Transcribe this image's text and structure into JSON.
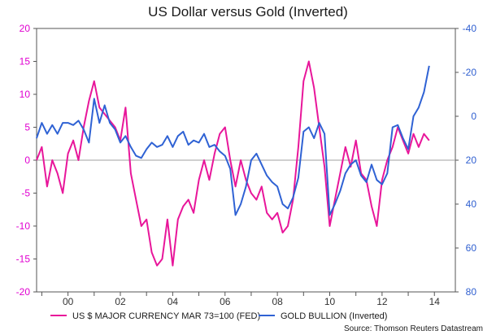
{
  "chart_data": {
    "type": "line",
    "title": "US Dollar versus Gold (Inverted)",
    "x_ticks": [
      "00",
      "02",
      "04",
      "06",
      "08",
      "10",
      "12",
      "14"
    ],
    "x_range": [
      1998.8,
      2014.8
    ],
    "left_axis": {
      "ticks": [
        "20",
        "15",
        "10",
        "5",
        "0",
        "-5",
        "-10",
        "-15",
        "-20"
      ],
      "ylim": [
        -20,
        20
      ],
      "color": "#e000d0"
    },
    "right_axis": {
      "ticks": [
        "-40",
        "-20",
        "0",
        "20",
        "40",
        "60",
        "80"
      ],
      "ylim": [
        80,
        -40
      ],
      "inverted": true,
      "color": "#2f5fd0"
    },
    "grid": "zero-line",
    "legend_position": "bottom",
    "series": [
      {
        "name": "US $ MAJOR CURRENCY MAR 73=100 (FED)",
        "axis": "left",
        "color": "#e8169a",
        "x": [
          1998.8,
          1999.0,
          1999.2,
          1999.4,
          1999.6,
          1999.8,
          2000.0,
          2000.2,
          2000.4,
          2000.6,
          2000.8,
          2001.0,
          2001.2,
          2001.4,
          2001.6,
          2001.8,
          2002.0,
          2002.2,
          2002.4,
          2002.6,
          2002.8,
          2003.0,
          2003.2,
          2003.4,
          2003.6,
          2003.8,
          2004.0,
          2004.2,
          2004.4,
          2004.6,
          2004.8,
          2005.0,
          2005.2,
          2005.4,
          2005.6,
          2005.8,
          2006.0,
          2006.2,
          2006.4,
          2006.6,
          2006.8,
          2007.0,
          2007.2,
          2007.4,
          2007.6,
          2007.8,
          2008.0,
          2008.2,
          2008.4,
          2008.6,
          2008.8,
          2009.0,
          2009.2,
          2009.4,
          2009.6,
          2009.8,
          2010.0,
          2010.2,
          2010.4,
          2010.6,
          2010.8,
          2011.0,
          2011.2,
          2011.4,
          2011.6,
          2011.8,
          2012.0,
          2012.2,
          2012.4,
          2012.6,
          2012.8,
          2013.0,
          2013.2,
          2013.4,
          2013.6,
          2013.8
        ],
        "values": [
          0,
          2,
          -4,
          0,
          -2,
          -5,
          1,
          3,
          0,
          5,
          9,
          12,
          8,
          7,
          6,
          5,
          3,
          8,
          -2,
          -6,
          -10,
          -9,
          -14,
          -16,
          -15,
          -9,
          -16,
          -9,
          -7,
          -6,
          -8,
          -3,
          0,
          -3,
          1,
          4,
          5,
          0,
          -4,
          0,
          -3,
          -5,
          -6,
          -4,
          -8,
          -9,
          -8,
          -11,
          -10,
          -6,
          2,
          12,
          15,
          11,
          5,
          -1,
          -10,
          -6,
          -2,
          2,
          -1,
          3,
          -2,
          -3,
          -7,
          -10,
          -3,
          0,
          2,
          5,
          3,
          1,
          4,
          2,
          4,
          3
        ]
      },
      {
        "name": "GOLD BULLION (Inverted)",
        "axis": "right",
        "color": "#2f62d4",
        "x": [
          1998.8,
          1999.0,
          1999.2,
          1999.4,
          1999.6,
          1999.8,
          2000.0,
          2000.2,
          2000.4,
          2000.6,
          2000.8,
          2001.0,
          2001.2,
          2001.4,
          2001.6,
          2001.8,
          2002.0,
          2002.2,
          2002.4,
          2002.6,
          2002.8,
          2003.0,
          2003.2,
          2003.4,
          2003.6,
          2003.8,
          2004.0,
          2004.2,
          2004.4,
          2004.6,
          2004.8,
          2005.0,
          2005.2,
          2005.4,
          2005.6,
          2005.8,
          2006.0,
          2006.2,
          2006.4,
          2006.6,
          2006.8,
          2007.0,
          2007.2,
          2007.4,
          2007.6,
          2007.8,
          2008.0,
          2008.2,
          2008.4,
          2008.6,
          2008.8,
          2009.0,
          2009.2,
          2009.4,
          2009.6,
          2009.8,
          2010.0,
          2010.2,
          2010.4,
          2010.6,
          2010.8,
          2011.0,
          2011.2,
          2011.4,
          2011.6,
          2011.8,
          2012.0,
          2012.2,
          2012.4,
          2012.6,
          2012.8,
          2013.0,
          2013.2,
          2013.4,
          2013.6,
          2013.8
        ],
        "values": [
          10,
          3,
          8,
          4,
          8,
          3,
          3,
          4,
          2,
          6,
          12,
          -8,
          3,
          -5,
          3,
          6,
          12,
          9,
          14,
          18,
          19,
          15,
          12,
          14,
          13,
          9,
          14,
          9,
          7,
          13,
          11,
          12,
          8,
          14,
          13,
          16,
          18,
          24,
          45,
          40,
          32,
          20,
          17,
          22,
          27,
          30,
          32,
          40,
          42,
          37,
          28,
          7,
          5,
          10,
          3,
          8,
          45,
          40,
          34,
          26,
          22,
          20,
          27,
          30,
          22,
          29,
          31,
          26,
          5,
          4,
          10,
          15,
          0,
          -4,
          -11,
          -23
        ]
      }
    ],
    "source": "Source: Thomson Reuters Datastream"
  }
}
